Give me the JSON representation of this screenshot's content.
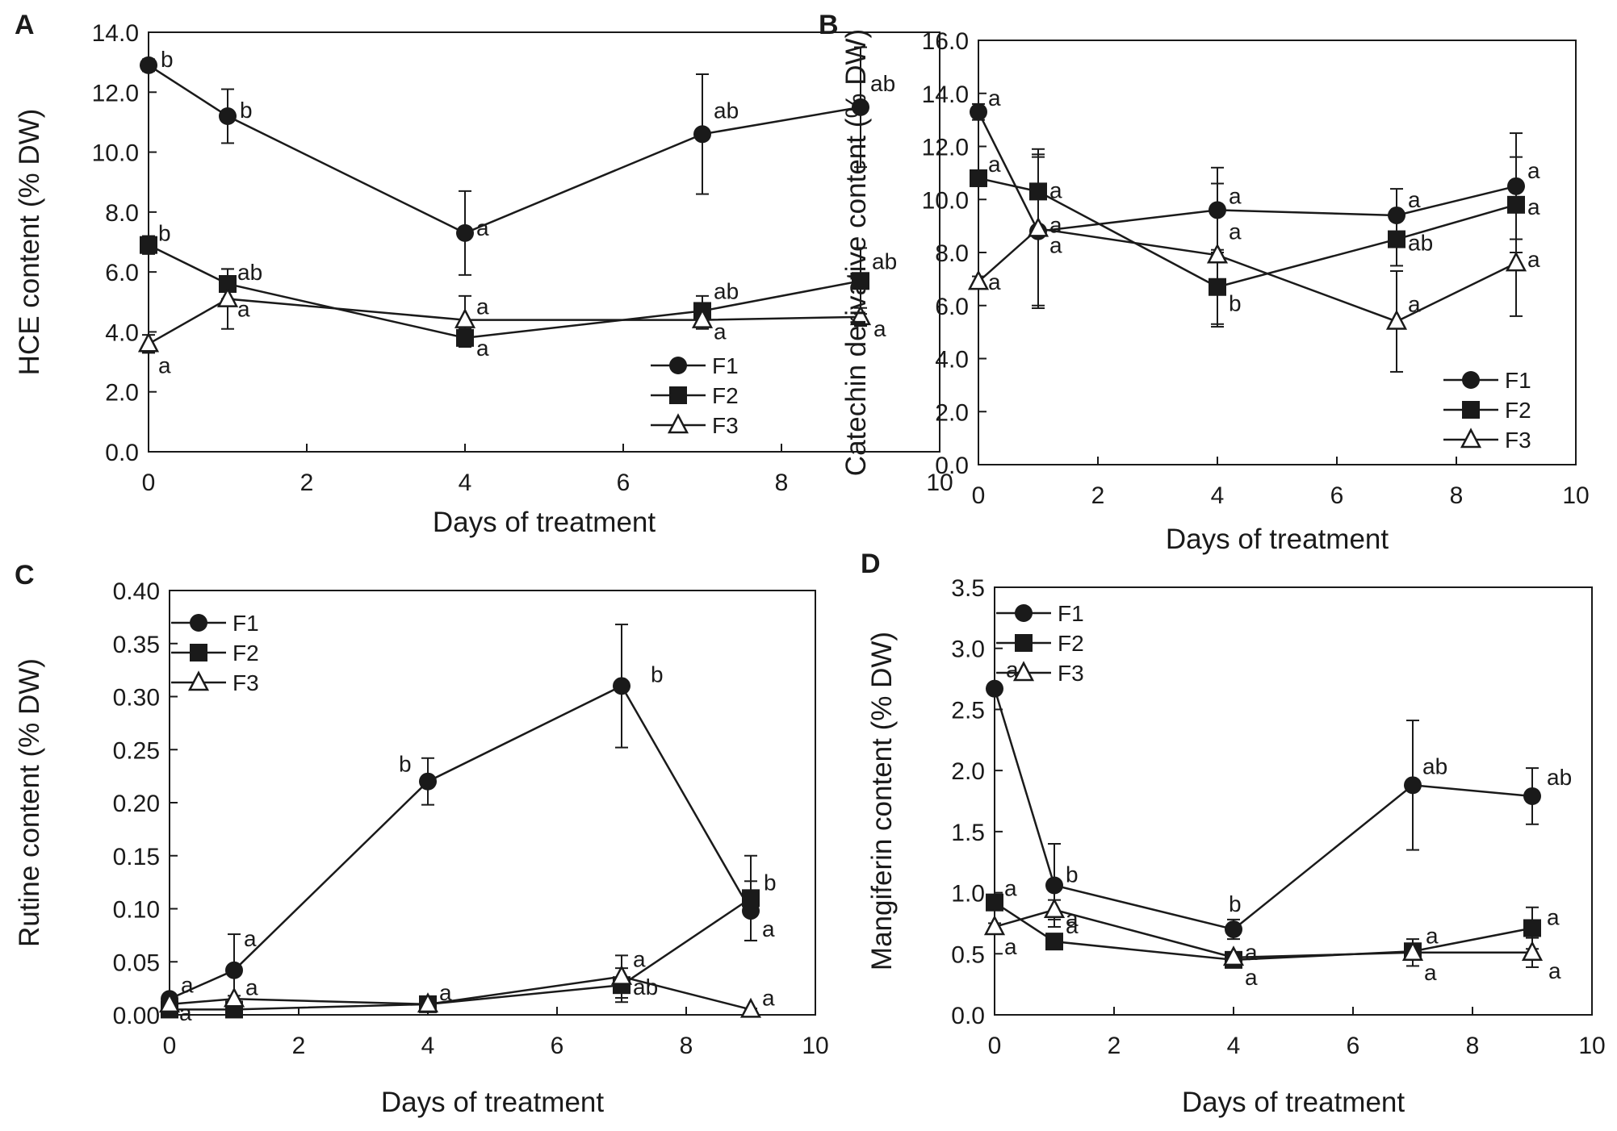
{
  "chart_data": [
    {
      "panel": "A",
      "type": "line",
      "xlabel": "Days of treatment",
      "ylabel": "HCE content (% DW)",
      "xlim": [
        0,
        10
      ],
      "ylim": [
        0,
        14
      ],
      "xticks": [
        "0",
        "2",
        "4",
        "6",
        "8",
        "10"
      ],
      "yticks": [
        "0.0",
        "2.0",
        "4.0",
        "6.0",
        "8.0",
        "10.0",
        "12.0",
        "14.0"
      ],
      "x": [
        0,
        1,
        4,
        7,
        9
      ],
      "legend_position": "bottom-right",
      "series": [
        {
          "name": "F1",
          "marker": "circle",
          "values": [
            12.9,
            11.2,
            7.3,
            10.6,
            11.5
          ],
          "errors": [
            0.2,
            0.9,
            1.4,
            2.0,
            2.0
          ],
          "labels": [
            "b",
            "b",
            "a",
            "ab",
            "ab"
          ]
        },
        {
          "name": "F2",
          "marker": "square",
          "values": [
            6.9,
            5.6,
            3.8,
            4.7,
            5.7
          ],
          "errors": [
            0.3,
            0.5,
            0.3,
            0.5,
            1.1
          ],
          "labels": [
            "b",
            "ab",
            "a",
            "ab",
            "ab"
          ]
        },
        {
          "name": "F3",
          "marker": "triangle",
          "values": [
            3.6,
            5.1,
            4.4,
            4.4,
            4.5
          ],
          "errors": [
            0.3,
            1.0,
            0.8,
            0.3,
            0.3
          ],
          "labels": [
            "a",
            "a",
            "a",
            "a",
            "a"
          ]
        }
      ]
    },
    {
      "panel": "B",
      "type": "line",
      "xlabel": "Days of treatment",
      "ylabel": "Catechin derivative content (% DW)",
      "xlim": [
        0,
        10
      ],
      "ylim": [
        0,
        16
      ],
      "xticks": [
        "0",
        "2",
        "4",
        "6",
        "8",
        "10"
      ],
      "yticks": [
        "0.0",
        "2.0",
        "4.0",
        "6.0",
        "8.0",
        "10.0",
        "12.0",
        "14.0",
        "16.0"
      ],
      "x": [
        0,
        1,
        4,
        7,
        9
      ],
      "legend_position": "bottom-right",
      "series": [
        {
          "name": "F1",
          "marker": "circle",
          "values": [
            13.3,
            8.8,
            9.6,
            9.4,
            10.5
          ],
          "errors": [
            0.3,
            2.8,
            1.6,
            1.0,
            2.0
          ],
          "labels": [
            "a",
            "a",
            "a",
            "a",
            "a"
          ]
        },
        {
          "name": "F2",
          "marker": "square",
          "values": [
            10.8,
            10.3,
            6.7,
            8.5,
            9.8
          ],
          "errors": [
            0.3,
            1.4,
            1.4,
            1.0,
            1.8
          ],
          "labels": [
            "a",
            "a",
            "b",
            "ab",
            "a"
          ]
        },
        {
          "name": "F3",
          "marker": "triangle",
          "values": [
            6.9,
            8.9,
            7.9,
            5.4,
            7.6
          ],
          "errors": [
            0.2,
            3.0,
            2.7,
            1.9,
            2.0
          ],
          "labels": [
            "a",
            "a",
            "a",
            "a",
            "a"
          ]
        }
      ]
    },
    {
      "panel": "C",
      "type": "line",
      "xlabel": "Days of treatment",
      "ylabel": "Rutine content (% DW)",
      "xlim": [
        0,
        10
      ],
      "ylim": [
        0,
        0.4
      ],
      "xticks": [
        "0",
        "2",
        "4",
        "6",
        "8",
        "10"
      ],
      "yticks": [
        "0.00",
        "0.05",
        "0.10",
        "0.15",
        "0.20",
        "0.25",
        "0.30",
        "0.35",
        "0.40"
      ],
      "x": [
        0,
        1,
        4,
        7,
        9
      ],
      "legend_position": "top-left",
      "series": [
        {
          "name": "F1",
          "marker": "circle",
          "values": [
            0.015,
            0.042,
            0.22,
            0.31,
            0.098
          ],
          "errors": [
            0.003,
            0.034,
            0.022,
            0.058,
            0.028
          ],
          "labels": [
            "a",
            "a",
            "b",
            "b",
            "a"
          ]
        },
        {
          "name": "F2",
          "marker": "square",
          "values": [
            0.005,
            0.005,
            0.01,
            0.028,
            0.11
          ],
          "errors": [
            0.002,
            0.002,
            0.003,
            0.016,
            0.04
          ],
          "labels": [
            "",
            "",
            "",
            "ab",
            "b"
          ]
        },
        {
          "name": "F3",
          "marker": "triangle",
          "values": [
            0.01,
            0.015,
            0.01,
            0.036,
            0.005
          ],
          "errors": [
            0.002,
            0.003,
            0.003,
            0.02,
            0.001
          ],
          "labels": [
            "a",
            "a",
            "a",
            "a",
            "a"
          ]
        }
      ]
    },
    {
      "panel": "D",
      "type": "line",
      "xlabel": "Days of treatment",
      "ylabel": "Mangiferin content (% DW)",
      "xlim": [
        0,
        10
      ],
      "ylim": [
        0,
        3.5
      ],
      "xticks": [
        "0",
        "2",
        "4",
        "6",
        "8",
        "10"
      ],
      "yticks": [
        "0.0",
        "0.5",
        "1.0",
        "1.5",
        "2.0",
        "2.5",
        "3.0",
        "3.5"
      ],
      "x": [
        0,
        1,
        4,
        7,
        9
      ],
      "legend_position": "top-left",
      "series": [
        {
          "name": "F1",
          "marker": "circle",
          "values": [
            2.67,
            1.06,
            0.7,
            1.88,
            1.79
          ],
          "errors": [
            0.03,
            0.34,
            0.08,
            0.53,
            0.23
          ],
          "labels": [
            "a",
            "b",
            "b",
            "ab",
            "ab"
          ]
        },
        {
          "name": "F2",
          "marker": "square",
          "values": [
            0.92,
            0.6,
            0.45,
            0.52,
            0.71
          ],
          "errors": [
            0.03,
            0.06,
            0.04,
            0.06,
            0.17
          ],
          "labels": [
            "a",
            "a",
            "a",
            "a",
            "a"
          ]
        },
        {
          "name": "F3",
          "marker": "triangle",
          "values": [
            0.72,
            0.86,
            0.47,
            0.51,
            0.51
          ],
          "errors": [
            0.03,
            0.08,
            0.04,
            0.11,
            0.12
          ],
          "labels": [
            "a",
            "a",
            "a",
            "a",
            "a"
          ]
        }
      ]
    }
  ]
}
